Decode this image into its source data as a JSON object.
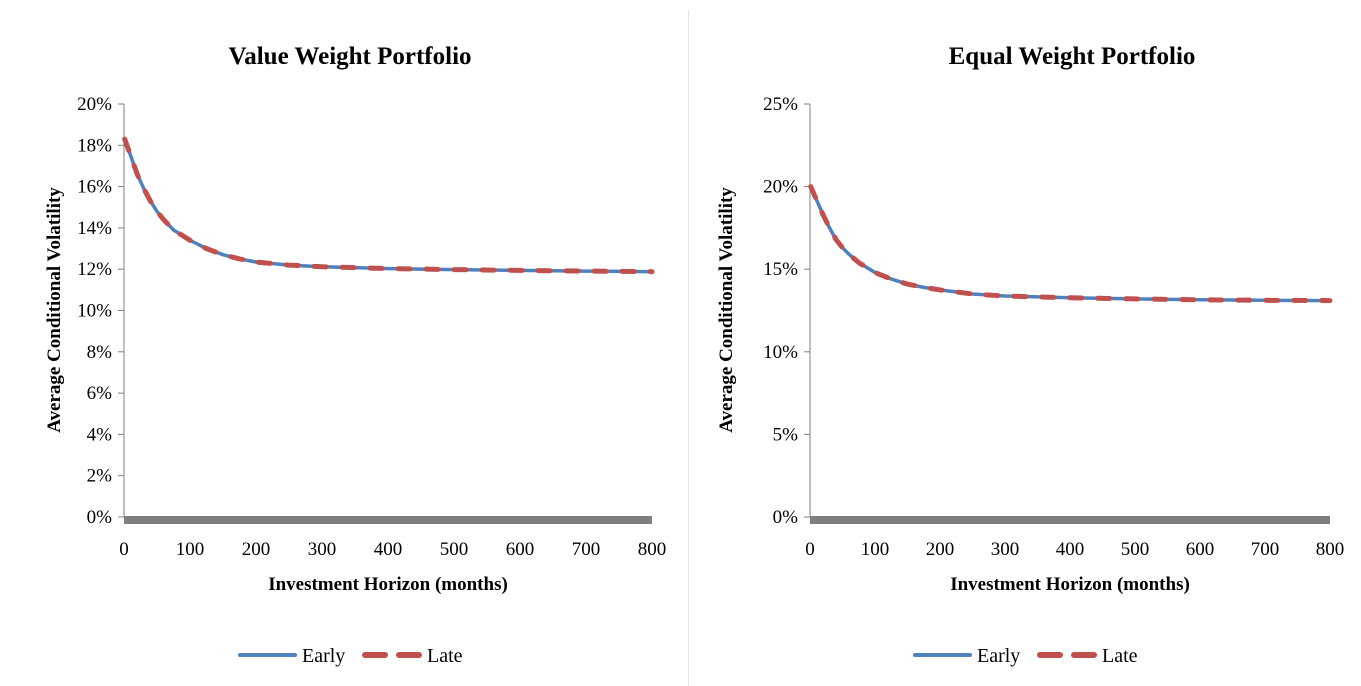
{
  "colors": {
    "early": "#4f81bd",
    "late": "#c0504d",
    "axis": "#808080",
    "base_band": "#7f7f7f"
  },
  "chart_data": [
    {
      "type": "line",
      "title": "Value Weight Portfolio",
      "xlabel": "Investment Horizon (months)",
      "ylabel": "Average Conditional Volatility",
      "xlim": [
        0,
        800
      ],
      "ylim": [
        0,
        0.2
      ],
      "x_ticks": [
        "0",
        "100",
        "200",
        "300",
        "400",
        "500",
        "600",
        "700",
        "800"
      ],
      "y_ticks": [
        "0%",
        "2%",
        "4%",
        "6%",
        "8%",
        "10%",
        "12%",
        "14%",
        "16%",
        "18%",
        "20%"
      ],
      "grid": false,
      "legend": "bottom",
      "x": [
        1,
        10,
        20,
        30,
        40,
        50,
        60,
        75,
        100,
        125,
        150,
        175,
        200,
        250,
        300,
        400,
        500,
        600,
        700,
        800
      ],
      "series": [
        {
          "name": "Early",
          "style": "solid",
          "values": [
            0.183,
            0.175,
            0.166,
            0.159,
            0.153,
            0.148,
            0.144,
            0.139,
            0.134,
            0.13,
            0.127,
            0.125,
            0.1235,
            0.122,
            0.1212,
            0.1203,
            0.1198,
            0.1194,
            0.1191,
            0.1188
          ]
        },
        {
          "name": "Late",
          "style": "dashed",
          "values": [
            0.183,
            0.175,
            0.166,
            0.159,
            0.153,
            0.148,
            0.144,
            0.139,
            0.134,
            0.13,
            0.127,
            0.125,
            0.1235,
            0.122,
            0.1212,
            0.1203,
            0.1198,
            0.1194,
            0.1191,
            0.1188
          ]
        }
      ]
    },
    {
      "type": "line",
      "title": "Equal Weight Portfolio",
      "xlabel": "Investment Horizon (months)",
      "ylabel": "Average Conditional Volatility",
      "xlim": [
        0,
        800
      ],
      "ylim": [
        0,
        0.25
      ],
      "x_ticks": [
        "0",
        "100",
        "200",
        "300",
        "400",
        "500",
        "600",
        "700",
        "800"
      ],
      "y_ticks": [
        "0%",
        "5%",
        "10%",
        "15%",
        "20%",
        "25%"
      ],
      "grid": false,
      "legend": "bottom",
      "x": [
        1,
        10,
        20,
        30,
        40,
        50,
        60,
        75,
        100,
        125,
        150,
        175,
        200,
        250,
        300,
        400,
        500,
        600,
        700,
        800
      ],
      "series": [
        {
          "name": "Early",
          "style": "solid",
          "values": [
            0.2,
            0.192,
            0.183,
            0.175,
            0.168,
            0.163,
            0.159,
            0.154,
            0.148,
            0.144,
            0.141,
            0.139,
            0.1375,
            0.135,
            0.1338,
            0.1327,
            0.132,
            0.1315,
            0.1312,
            0.131
          ]
        },
        {
          "name": "Late",
          "style": "dashed",
          "values": [
            0.2,
            0.192,
            0.183,
            0.175,
            0.168,
            0.163,
            0.159,
            0.154,
            0.148,
            0.144,
            0.141,
            0.139,
            0.1375,
            0.135,
            0.1338,
            0.1327,
            0.132,
            0.1315,
            0.1312,
            0.131
          ]
        }
      ]
    }
  ]
}
